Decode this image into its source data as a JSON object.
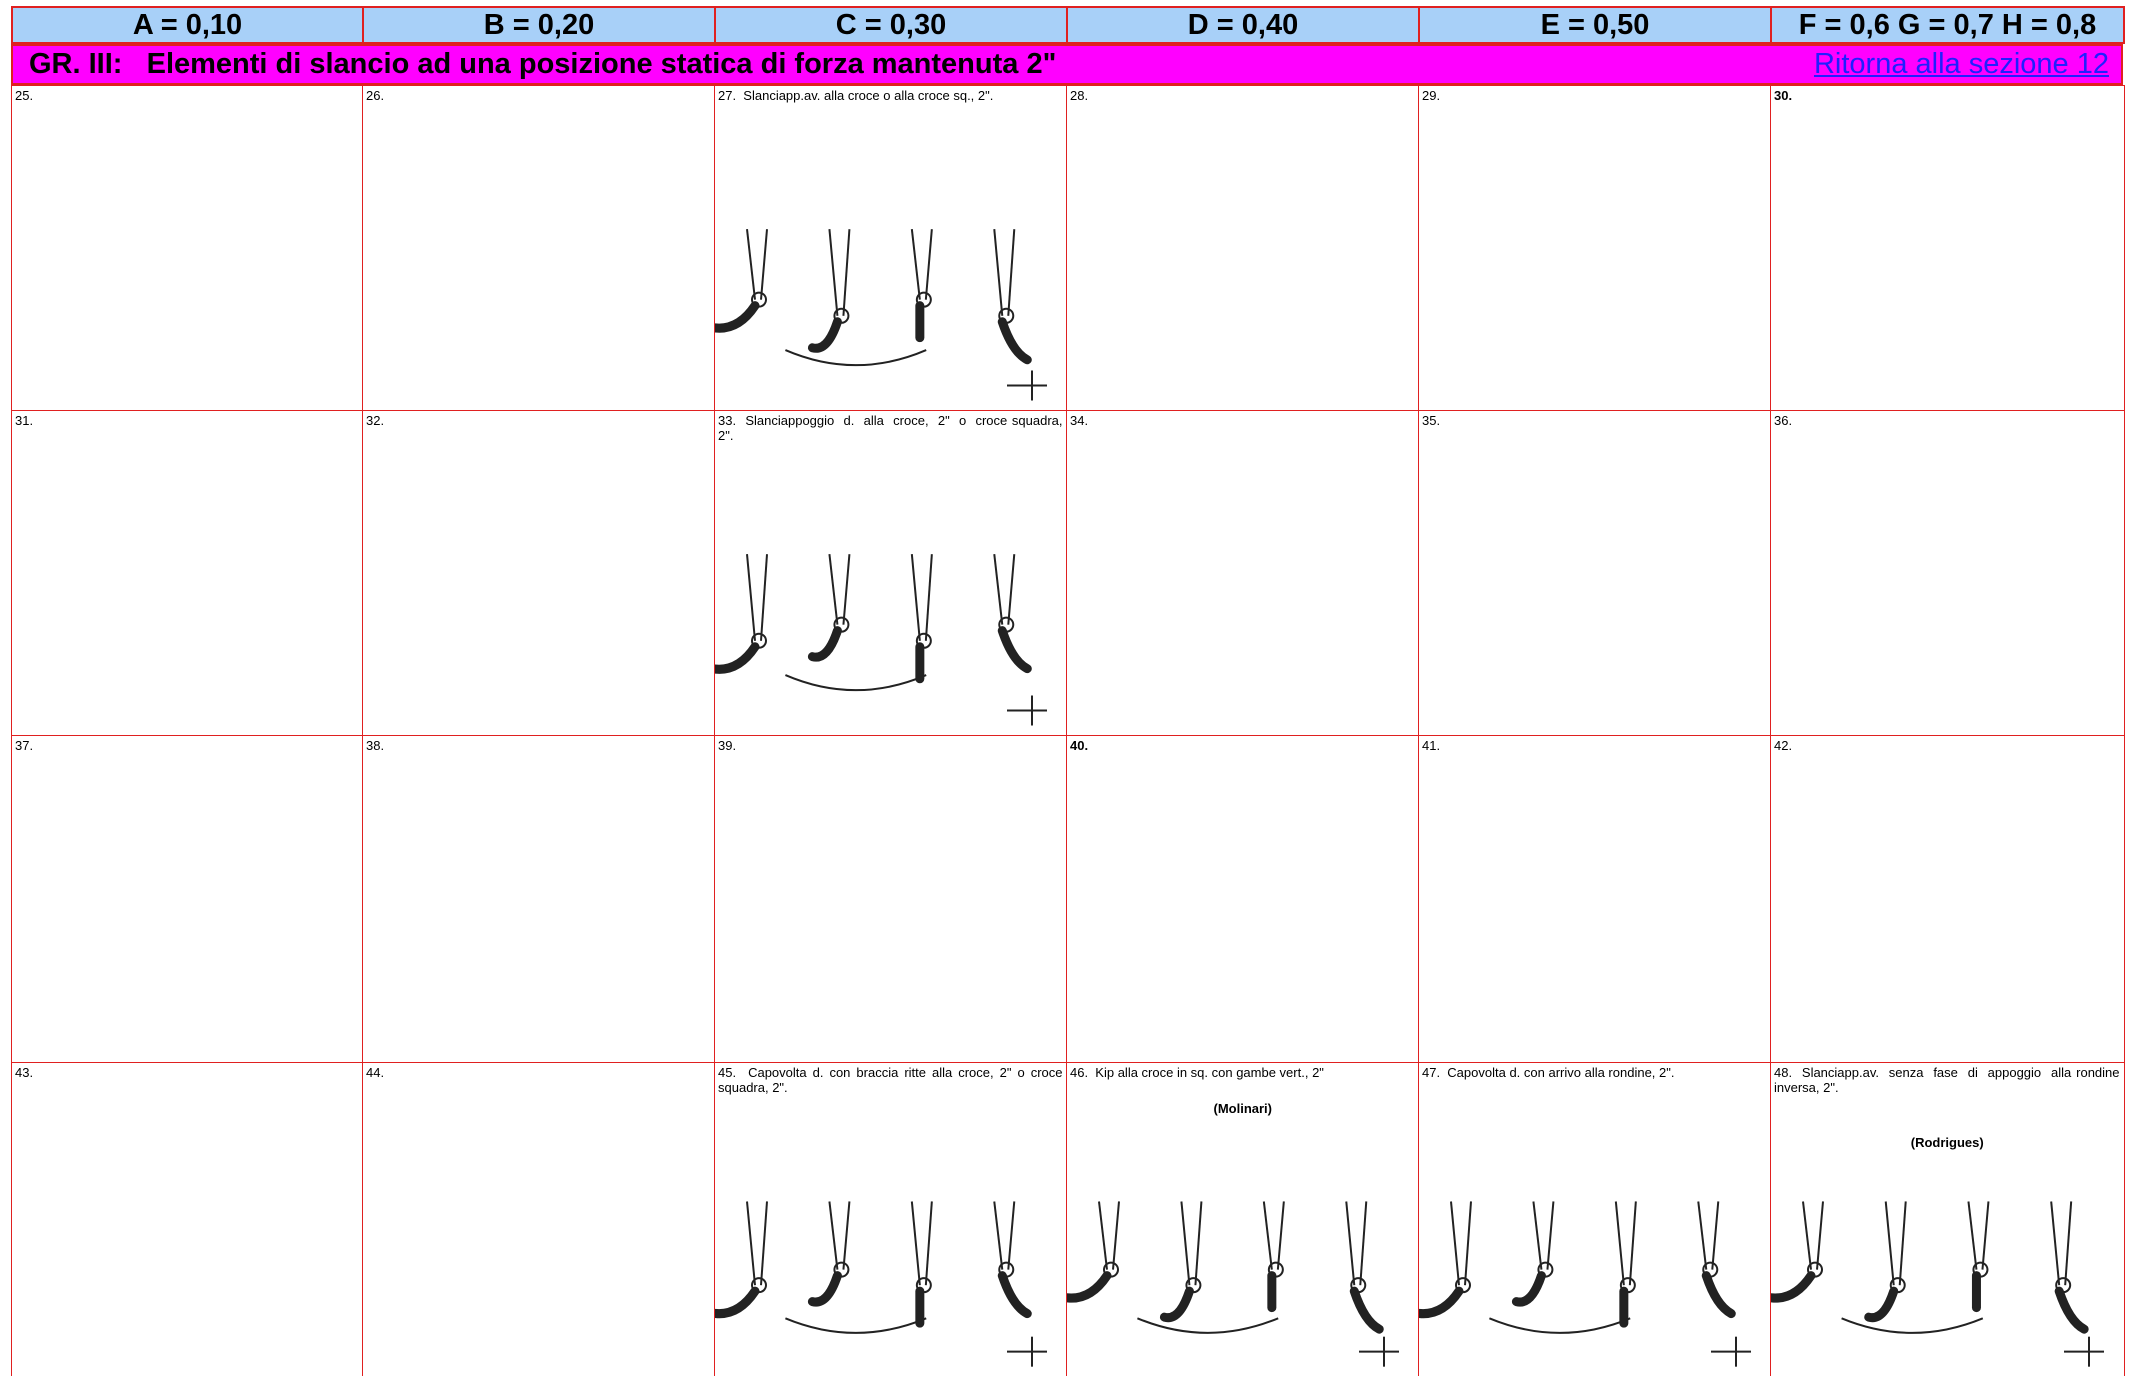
{
  "header": {
    "columns": [
      "A = 0,10",
      "B = 0,20",
      "C = 0,30",
      "D = 0,40",
      "E = 0,50",
      "F = 0,6 G = 0,7 H = 0,8"
    ]
  },
  "section": {
    "title": "GR. III:   Elementi di slancio ad una posizione statica di forza mantenuta 2\"",
    "link": "Ritorna alla sezione 12"
  },
  "table": {
    "rows": [
      [
        {
          "text": "25."
        },
        {
          "text": "26."
        },
        {
          "text": "27.  Slanciapp.av. alla croce o alla croce sq., 2\"."
        },
        {
          "text": "28."
        },
        {
          "text": "29."
        },
        {
          "text": "30."
        }
      ],
      [
        {
          "text": "31."
        },
        {
          "text": "32."
        },
        {
          "text": "33.  Slanciappoggio  d.  alla  croce,  2\"  o  croce squadra, 2\"."
        },
        {
          "text": "34."
        },
        {
          "text": "35."
        },
        {
          "text": "36."
        }
      ],
      [
        {
          "text": "37."
        },
        {
          "text": "38."
        },
        {
          "text": "39."
        },
        {
          "text": "40."
        },
        {
          "text": "41."
        },
        {
          "text": "42."
        }
      ],
      [
        {
          "text": "43."
        },
        {
          "text": "44."
        },
        {
          "text": "45.  Capovolta d. con braccia ritte alla croce, 2\" o croce squadra, 2\"."
        },
        {
          "text": "46.  Kip alla croce in sq. con gambe vert., 2\"",
          "note": "(Molinari)"
        },
        {
          "text": "47.  Capovolta d. con arrivo alla rondine, 2\"."
        },
        {
          "text": "48.  Slanciapp.av.  senza  fase  di  appoggio  alla rondine inversa, 2\".",
          "note": "(Rodrigues)"
        }
      ]
    ]
  }
}
